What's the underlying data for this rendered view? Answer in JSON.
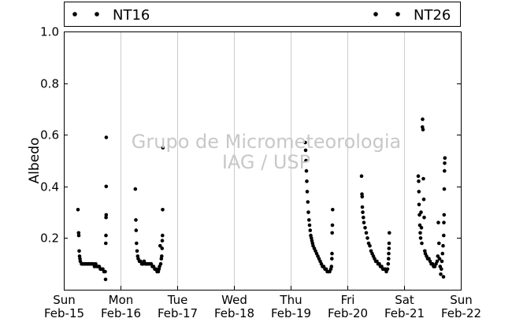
{
  "chart_data": {
    "type": "scatter",
    "title": "",
    "xlabel": "",
    "ylabel": "Albedo",
    "ylim": [
      0.0,
      1.0
    ],
    "xlim": [
      "Feb-15 00:00",
      "Feb-22 00:00"
    ],
    "yticks": [
      "",
      "0.2",
      "0.4",
      "0.6",
      "0.8",
      "1.0"
    ],
    "xticks": [
      {
        "day": "Sun",
        "date": "Feb-15"
      },
      {
        "day": "Mon",
        "date": "Feb-16"
      },
      {
        "day": "Tue",
        "date": "Feb-17"
      },
      {
        "day": "Wed",
        "date": "Feb-18"
      },
      {
        "day": "Thu",
        "date": "Feb-19"
      },
      {
        "day": "Fri",
        "date": "Feb-20"
      },
      {
        "day": "Sat",
        "date": "Feb-21"
      },
      {
        "day": "Sun",
        "date": "Feb-22"
      }
    ],
    "grid": "vertical",
    "legend_position": "top",
    "watermark": [
      "Grupo de Micrometeorologia",
      "IAG / USP"
    ],
    "series": [
      {
        "name": "NT16",
        "color": "#000000",
        "points": [
          [
            "Feb-15 06:00",
            0.31
          ],
          [
            "Feb-15 06:15",
            0.22
          ],
          [
            "Feb-15 06:20",
            0.21
          ],
          [
            "Feb-15 06:30",
            0.15
          ],
          [
            "Feb-15 06:40",
            0.13
          ],
          [
            "Feb-15 06:50",
            0.12
          ],
          [
            "Feb-15 07:00",
            0.11
          ],
          [
            "Feb-15 07:30",
            0.1
          ],
          [
            "Feb-15 08:00",
            0.1
          ],
          [
            "Feb-15 08:30",
            0.1
          ],
          [
            "Feb-15 09:00",
            0.1
          ],
          [
            "Feb-15 09:30",
            0.1
          ],
          [
            "Feb-15 10:00",
            0.1
          ],
          [
            "Feb-15 10:30",
            0.1
          ],
          [
            "Feb-15 11:00",
            0.1
          ],
          [
            "Feb-15 11:30",
            0.1
          ],
          [
            "Feb-15 12:00",
            0.1
          ],
          [
            "Feb-15 12:30",
            0.1
          ],
          [
            "Feb-15 13:00",
            0.09
          ],
          [
            "Feb-15 13:30",
            0.1
          ],
          [
            "Feb-15 14:00",
            0.09
          ],
          [
            "Feb-15 14:30",
            0.09
          ],
          [
            "Feb-15 15:00",
            0.09
          ],
          [
            "Feb-15 15:30",
            0.08
          ],
          [
            "Feb-15 16:00",
            0.08
          ],
          [
            "Feb-15 16:30",
            0.08
          ],
          [
            "Feb-15 17:00",
            0.07
          ],
          [
            "Feb-15 17:30",
            0.07
          ],
          [
            "Feb-15 17:40",
            0.04
          ],
          [
            "Feb-15 17:45",
            0.18
          ],
          [
            "Feb-15 17:50",
            0.21
          ],
          [
            "Feb-15 17:52",
            0.28
          ],
          [
            "Feb-15 17:55",
            0.29
          ],
          [
            "Feb-15 17:57",
            0.4
          ],
          [
            "Feb-15 17:58",
            0.59
          ],
          [
            "Feb-16 06:15",
            0.39
          ],
          [
            "Feb-16 06:30",
            0.27
          ],
          [
            "Feb-16 06:35",
            0.23
          ],
          [
            "Feb-16 06:45",
            0.18
          ],
          [
            "Feb-16 07:00",
            0.15
          ],
          [
            "Feb-16 07:15",
            0.13
          ],
          [
            "Feb-16 07:30",
            0.12
          ],
          [
            "Feb-16 08:00",
            0.11
          ],
          [
            "Feb-16 08:30",
            0.11
          ],
          [
            "Feb-16 09:00",
            0.1
          ],
          [
            "Feb-16 09:30",
            0.1
          ],
          [
            "Feb-16 10:00",
            0.11
          ],
          [
            "Feb-16 10:30",
            0.1
          ],
          [
            "Feb-16 11:00",
            0.1
          ],
          [
            "Feb-16 11:30",
            0.1
          ],
          [
            "Feb-16 12:00",
            0.1
          ],
          [
            "Feb-16 12:30",
            0.1
          ],
          [
            "Feb-16 13:00",
            0.1
          ],
          [
            "Feb-16 13:30",
            0.09
          ],
          [
            "Feb-16 14:00",
            0.09
          ],
          [
            "Feb-16 14:30",
            0.08
          ],
          [
            "Feb-16 15:00",
            0.08
          ],
          [
            "Feb-16 15:30",
            0.07
          ],
          [
            "Feb-16 16:00",
            0.07
          ],
          [
            "Feb-16 16:15",
            0.08
          ],
          [
            "Feb-16 16:30",
            0.09
          ],
          [
            "Feb-16 16:45",
            0.17
          ],
          [
            "Feb-16 17:00",
            0.1
          ],
          [
            "Feb-16 17:15",
            0.12
          ],
          [
            "Feb-16 17:25",
            0.13
          ],
          [
            "Feb-16 17:35",
            0.16
          ],
          [
            "Feb-16 17:40",
            0.19
          ],
          [
            "Feb-16 17:45",
            0.21
          ],
          [
            "Feb-16 17:50",
            0.31
          ],
          [
            "Feb-16 17:55",
            0.55
          ],
          [
            "Feb-19 06:10",
            0.57
          ],
          [
            "Feb-19 06:20",
            0.54
          ],
          [
            "Feb-19 06:30",
            0.5
          ],
          [
            "Feb-19 06:40",
            0.46
          ],
          [
            "Feb-19 06:50",
            0.42
          ],
          [
            "Feb-19 07:00",
            0.38
          ],
          [
            "Feb-19 07:15",
            0.34
          ],
          [
            "Feb-19 07:30",
            0.3
          ],
          [
            "Feb-19 07:45",
            0.27
          ],
          [
            "Feb-19 08:00",
            0.25
          ],
          [
            "Feb-19 08:15",
            0.23
          ],
          [
            "Feb-19 08:30",
            0.21
          ],
          [
            "Feb-19 08:45",
            0.2
          ],
          [
            "Feb-19 09:00",
            0.19
          ],
          [
            "Feb-19 09:15",
            0.18
          ],
          [
            "Feb-19 09:30",
            0.17
          ],
          [
            "Feb-19 10:00",
            0.16
          ],
          [
            "Feb-19 10:30",
            0.15
          ],
          [
            "Feb-19 11:00",
            0.14
          ],
          [
            "Feb-19 11:30",
            0.13
          ],
          [
            "Feb-19 12:00",
            0.12
          ],
          [
            "Feb-19 12:30",
            0.11
          ],
          [
            "Feb-19 13:00",
            0.1
          ],
          [
            "Feb-19 13:30",
            0.09
          ],
          [
            "Feb-19 14:00",
            0.09
          ],
          [
            "Feb-19 14:30",
            0.08
          ],
          [
            "Feb-19 15:00",
            0.08
          ],
          [
            "Feb-19 15:30",
            0.07
          ],
          [
            "Feb-19 16:00",
            0.07
          ],
          [
            "Feb-19 16:30",
            0.07
          ],
          [
            "Feb-19 17:00",
            0.08
          ],
          [
            "Feb-19 17:15",
            0.09
          ],
          [
            "Feb-19 17:25",
            0.12
          ],
          [
            "Feb-19 17:30",
            0.14
          ],
          [
            "Feb-19 17:35",
            0.22
          ],
          [
            "Feb-19 17:40",
            0.25
          ],
          [
            "Feb-19 17:45",
            0.31
          ],
          [
            "Feb-20 06:00",
            0.44
          ],
          [
            "Feb-20 06:10",
            0.37
          ],
          [
            "Feb-20 06:15",
            0.36
          ],
          [
            "Feb-20 06:20",
            0.32
          ],
          [
            "Feb-20 06:30",
            0.3
          ],
          [
            "Feb-20 06:45",
            0.28
          ],
          [
            "Feb-20 07:00",
            0.26
          ],
          [
            "Feb-20 07:30",
            0.24
          ],
          [
            "Feb-20 08:00",
            0.22
          ],
          [
            "Feb-20 08:30",
            0.2
          ],
          [
            "Feb-20 09:00",
            0.18
          ],
          [
            "Feb-20 09:30",
            0.17
          ],
          [
            "Feb-20 10:00",
            0.15
          ],
          [
            "Feb-20 10:30",
            0.14
          ],
          [
            "Feb-20 11:00",
            0.13
          ],
          [
            "Feb-20 11:30",
            0.12
          ],
          [
            "Feb-20 12:00",
            0.11
          ],
          [
            "Feb-20 12:30",
            0.11
          ],
          [
            "Feb-20 13:00",
            0.1
          ],
          [
            "Feb-20 13:30",
            0.1
          ],
          [
            "Feb-20 14:00",
            0.09
          ],
          [
            "Feb-20 14:30",
            0.09
          ],
          [
            "Feb-20 15:00",
            0.08
          ],
          [
            "Feb-20 15:30",
            0.08
          ],
          [
            "Feb-20 16:00",
            0.08
          ],
          [
            "Feb-20 16:30",
            0.07
          ],
          [
            "Feb-20 17:00",
            0.08
          ],
          [
            "Feb-20 17:15",
            0.1
          ],
          [
            "Feb-20 17:25",
            0.12
          ],
          [
            "Feb-20 17:30",
            0.14
          ],
          [
            "Feb-20 17:35",
            0.16
          ],
          [
            "Feb-20 17:40",
            0.18
          ],
          [
            "Feb-20 17:45",
            0.22
          ],
          [
            "Feb-21 06:00",
            0.44
          ],
          [
            "Feb-21 06:10",
            0.42
          ],
          [
            "Feb-21 06:15",
            0.38
          ],
          [
            "Feb-21 06:20",
            0.33
          ],
          [
            "Feb-21 06:30",
            0.29
          ],
          [
            "Feb-21 06:40",
            0.25
          ],
          [
            "Feb-21 06:50",
            0.22
          ],
          [
            "Feb-21 07:00",
            0.2
          ],
          [
            "Feb-21 07:10",
            0.3
          ],
          [
            "Feb-21 07:20",
            0.24
          ],
          [
            "Feb-21 07:30",
            0.18
          ],
          [
            "Feb-21 07:45",
            0.63
          ],
          [
            "Feb-21 07:50",
            0.66
          ],
          [
            "Feb-21 08:00",
            0.62
          ],
          [
            "Feb-21 08:10",
            0.43
          ],
          [
            "Feb-21 08:20",
            0.35
          ],
          [
            "Feb-21 08:30",
            0.28
          ],
          [
            "Feb-21 08:45",
            0.15
          ],
          [
            "Feb-21 09:00",
            0.14
          ],
          [
            "Feb-21 09:30",
            0.13
          ],
          [
            "Feb-21 10:00",
            0.12
          ],
          [
            "Feb-21 10:30",
            0.12
          ],
          [
            "Feb-21 11:00",
            0.11
          ],
          [
            "Feb-21 11:30",
            0.1
          ],
          [
            "Feb-21 12:00",
            0.1
          ],
          [
            "Feb-21 12:30",
            0.09
          ],
          [
            "Feb-21 13:00",
            0.09
          ],
          [
            "Feb-21 13:30",
            0.1
          ],
          [
            "Feb-21 14:00",
            0.11
          ],
          [
            "Feb-21 14:15",
            0.13
          ],
          [
            "Feb-21 14:30",
            0.26
          ],
          [
            "Feb-21 14:45",
            0.18
          ],
          [
            "Feb-21 15:00",
            0.12
          ],
          [
            "Feb-21 15:15",
            0.09
          ],
          [
            "Feb-21 15:30",
            0.06
          ],
          [
            "Feb-21 15:45",
            0.08
          ],
          [
            "Feb-21 16:00",
            0.11
          ],
          [
            "Feb-21 16:15",
            0.14
          ],
          [
            "Feb-21 16:30",
            0.17
          ],
          [
            "Feb-21 16:40",
            0.05
          ],
          [
            "Feb-21 16:45",
            0.21
          ],
          [
            "Feb-21 16:50",
            0.26
          ],
          [
            "Feb-21 16:55",
            0.29
          ],
          [
            "Feb-21 17:00",
            0.39
          ],
          [
            "Feb-21 17:05",
            0.46
          ],
          [
            "Feb-21 17:10",
            0.49
          ],
          [
            "Feb-21 17:15",
            0.51
          ]
        ]
      },
      {
        "name": "NT26",
        "color": "#000000",
        "points": []
      }
    ]
  }
}
